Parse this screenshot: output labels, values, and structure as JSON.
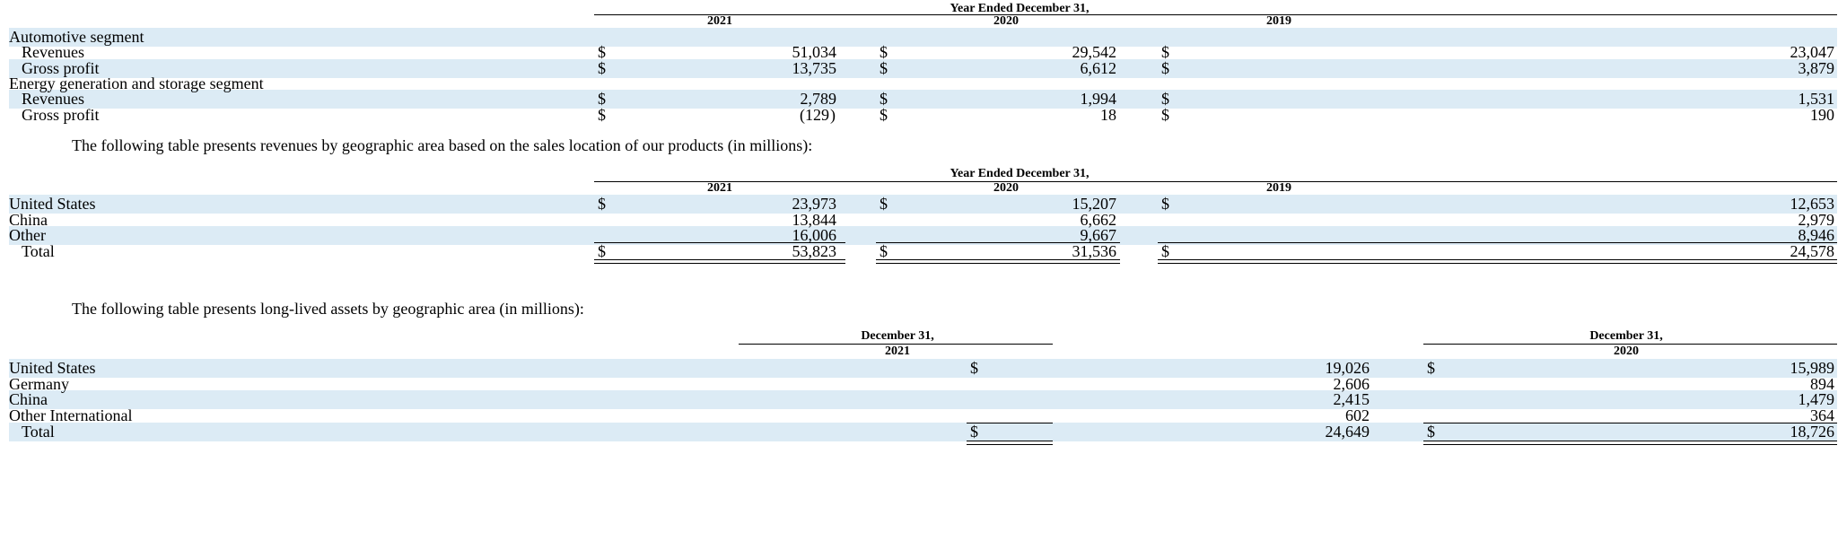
{
  "segment_table": {
    "period_header": "Year Ended December 31,",
    "years": [
      "2021",
      "2020",
      "2019"
    ],
    "rows": [
      {
        "label": "Automotive segment",
        "indent": false,
        "values": []
      },
      {
        "label": "Revenues",
        "indent": true,
        "values": [
          "51,034",
          "29,542",
          "23,047"
        ],
        "dollar": true
      },
      {
        "label": "Gross profit",
        "indent": true,
        "values": [
          "13,735",
          "6,612",
          "3,879"
        ],
        "dollar": true
      },
      {
        "label": "Energy generation and storage segment",
        "indent": false,
        "values": []
      },
      {
        "label": "Revenues",
        "indent": true,
        "values": [
          "2,789",
          "1,994",
          "1,531"
        ],
        "dollar": true
      },
      {
        "label": "Gross profit",
        "indent": true,
        "values": [
          "(129",
          "18",
          "190"
        ],
        "dollar": true
      }
    ]
  },
  "para_revenue": "The following table presents revenues by geographic area based on the sales location of our products (in millions):",
  "revenue_table": {
    "period_header": "Year Ended December 31,",
    "years": [
      "2021",
      "2020",
      "2019"
    ],
    "rows": [
      {
        "label": "United States",
        "values": [
          "23,973",
          "15,207",
          "12,653"
        ],
        "dollar": true
      },
      {
        "label": "China",
        "values": [
          "13,844",
          "6,662",
          "2,979"
        ],
        "dollar": false
      },
      {
        "label": "Other",
        "values": [
          "16,006",
          "9,667",
          "8,946"
        ],
        "dollar": false
      },
      {
        "label": "Total",
        "values": [
          "53,823",
          "31,536",
          "24,578"
        ],
        "dollar": true
      }
    ]
  },
  "para_assets": "The following table presents long-lived assets by geographic area (in millions):",
  "assets_table": {
    "columns": [
      {
        "line1": "December 31,",
        "line2": "2021"
      },
      {
        "line1": "December 31,",
        "line2": "2020"
      }
    ],
    "rows": [
      {
        "label": "United States",
        "values": [
          "19,026",
          "15,989"
        ],
        "dollar": true
      },
      {
        "label": "Germany",
        "values": [
          "2,606",
          "894"
        ],
        "dollar": false
      },
      {
        "label": "China",
        "values": [
          "2,415",
          "1,479"
        ],
        "dollar": false
      },
      {
        "label": "Other International",
        "values": [
          "602",
          "364"
        ],
        "dollar": false
      },
      {
        "label": "Total",
        "values": [
          "24,649",
          "18,726"
        ],
        "dollar": true
      }
    ]
  },
  "symbols": {
    "dollar": "$",
    "close_paren": ")"
  }
}
